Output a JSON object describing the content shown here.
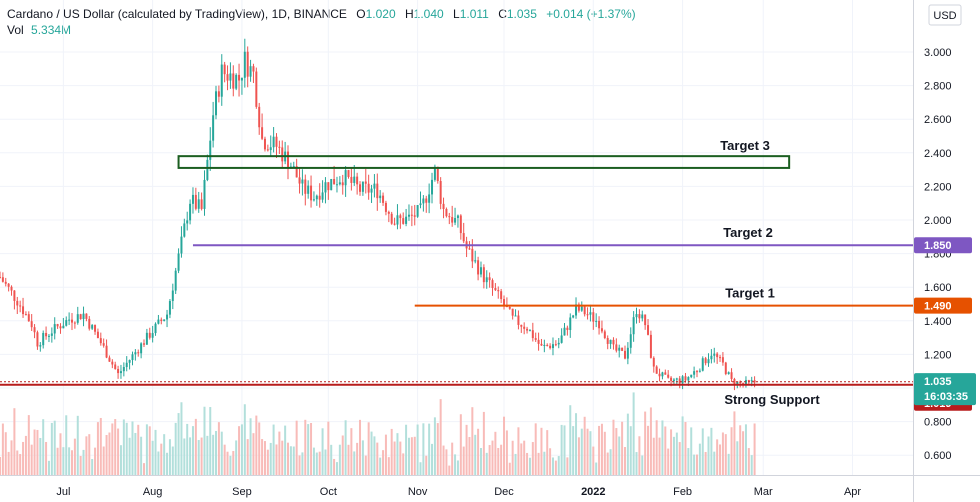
{
  "header": {
    "symbol": "Cardano / US Dollar (calculated by TradingView), 1D, BINANCE",
    "open_label": "O",
    "open": "1.020",
    "high_label": "H",
    "high": "1.040",
    "low_label": "L",
    "low": "1.011",
    "close_label": "C",
    "close": "1.035",
    "change": "+0.014 (+1.37%)",
    "vol_label": "Vol",
    "vol": "5.334M"
  },
  "chart_data": {
    "type": "candlestick",
    "currency": "USD",
    "y_ticks": [
      "3.000",
      "2.800",
      "2.600",
      "2.400",
      "2.200",
      "2.000",
      "1.800",
      "1.600",
      "1.400",
      "1.200",
      "1.000",
      "0.800",
      "0.600"
    ],
    "y_range": [
      0.52,
      3.18
    ],
    "x_ticks": [
      "Jul",
      "Aug",
      "Sep",
      "Oct",
      "Nov",
      "Dec",
      "2022",
      "Feb",
      "Mar",
      "Apr"
    ],
    "date_range": [
      "2021-06-09",
      "2022-04-22"
    ],
    "price_path": [
      {
        "date": "2021-06-09",
        "price": 1.66
      },
      {
        "date": "2021-06-15",
        "price": 1.52
      },
      {
        "date": "2021-06-20",
        "price": 1.38
      },
      {
        "date": "2021-06-22",
        "price": 1.27
      },
      {
        "date": "2021-06-27",
        "price": 1.34
      },
      {
        "date": "2021-07-03",
        "price": 1.41
      },
      {
        "date": "2021-07-08",
        "price": 1.44
      },
      {
        "date": "2021-07-14",
        "price": 1.27
      },
      {
        "date": "2021-07-20",
        "price": 1.08
      },
      {
        "date": "2021-07-24",
        "price": 1.17
      },
      {
        "date": "2021-07-31",
        "price": 1.32
      },
      {
        "date": "2021-08-06",
        "price": 1.44
      },
      {
        "date": "2021-08-10",
        "price": 1.78
      },
      {
        "date": "2021-08-14",
        "price": 2.12
      },
      {
        "date": "2021-08-18",
        "price": 2.06
      },
      {
        "date": "2021-08-22",
        "price": 2.63
      },
      {
        "date": "2021-08-25",
        "price": 2.88
      },
      {
        "date": "2021-08-31",
        "price": 2.84
      },
      {
        "date": "2021-09-02",
        "price": 2.95
      },
      {
        "date": "2021-09-05",
        "price": 2.87
      },
      {
        "date": "2021-09-08",
        "price": 2.48
      },
      {
        "date": "2021-09-13",
        "price": 2.44
      },
      {
        "date": "2021-09-18",
        "price": 2.33
      },
      {
        "date": "2021-09-22",
        "price": 2.19
      },
      {
        "date": "2021-09-26",
        "price": 2.14
      },
      {
        "date": "2021-09-30",
        "price": 2.21
      },
      {
        "date": "2021-10-06",
        "price": 2.26
      },
      {
        "date": "2021-10-12",
        "price": 2.18
      },
      {
        "date": "2021-10-18",
        "price": 2.18
      },
      {
        "date": "2021-10-24",
        "price": 1.99
      },
      {
        "date": "2021-10-29",
        "price": 2.01
      },
      {
        "date": "2021-11-02",
        "price": 2.05
      },
      {
        "date": "2021-11-07",
        "price": 2.29
      },
      {
        "date": "2021-11-10",
        "price": 2.06
      },
      {
        "date": "2021-11-15",
        "price": 1.98
      },
      {
        "date": "2021-11-18",
        "price": 1.83
      },
      {
        "date": "2021-11-24",
        "price": 1.66
      },
      {
        "date": "2021-11-30",
        "price": 1.52
      },
      {
        "date": "2021-12-04",
        "price": 1.41
      },
      {
        "date": "2021-12-09",
        "price": 1.36
      },
      {
        "date": "2021-12-14",
        "price": 1.24
      },
      {
        "date": "2021-12-20",
        "price": 1.27
      },
      {
        "date": "2021-12-26",
        "price": 1.47
      },
      {
        "date": "2021-12-29",
        "price": 1.45
      },
      {
        "date": "2022-01-03",
        "price": 1.39
      },
      {
        "date": "2022-01-08",
        "price": 1.23
      },
      {
        "date": "2022-01-12",
        "price": 1.19
      },
      {
        "date": "2022-01-16",
        "price": 1.47
      },
      {
        "date": "2022-01-19",
        "price": 1.38
      },
      {
        "date": "2022-01-22",
        "price": 1.11
      },
      {
        "date": "2022-01-27",
        "price": 1.04
      },
      {
        "date": "2022-02-02",
        "price": 1.05
      },
      {
        "date": "2022-02-06",
        "price": 1.11
      },
      {
        "date": "2022-02-11",
        "price": 1.21
      },
      {
        "date": "2022-02-15",
        "price": 1.14
      },
      {
        "date": "2022-02-18",
        "price": 1.04
      },
      {
        "date": "2022-02-22",
        "price": 1.02
      },
      {
        "date": "2022-02-26",
        "price": 1.035
      }
    ],
    "levels": [
      {
        "name": "Target 3",
        "type": "zone",
        "low": 2.31,
        "high": 2.38,
        "from": "2021-08-10",
        "to": "2022-03-10",
        "color": "#1b5e20"
      },
      {
        "name": "Target 2",
        "type": "line",
        "price": 1.85,
        "from": "2021-08-15",
        "to": "2022-04-22",
        "color": "#7e57c2",
        "badge": "1.850"
      },
      {
        "name": "Target 1",
        "type": "line",
        "price": 1.49,
        "from": "2021-10-31",
        "to": "2022-04-22",
        "color": "#e65100",
        "badge": "1.490"
      },
      {
        "name": "Strong Support",
        "type": "line",
        "price": 1.019,
        "from": "2021-06-09",
        "to": "2022-04-22",
        "color": "#b71c1c",
        "badge": "1.019"
      }
    ],
    "last_price": {
      "value": "1.035",
      "countdown": "16:03:35",
      "color": "#26a69a"
    },
    "grid": true,
    "legend": "none"
  },
  "colors": {
    "up": "#26a69a",
    "down": "#ef5350",
    "up_vol": "#b2dfdb",
    "down_vol": "#f8bbb8",
    "grid": "#f0f3fa",
    "text": "#131722"
  }
}
